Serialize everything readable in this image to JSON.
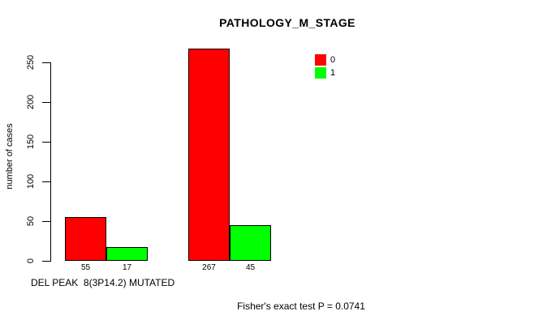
{
  "title": "PATHOLOGY_M_STAGE",
  "axes": {
    "ylabel": "number of cases",
    "xlabel": "DEL PEAK  8(3P14.2) MUTATED"
  },
  "footer": "Fisher's exact test P = 0.0741",
  "legend": {
    "position": "top-right",
    "items": [
      {
        "label": "0",
        "color": "#FF0000"
      },
      {
        "label": "1",
        "color": "#00FF00"
      }
    ]
  },
  "colors": {
    "series_0": "#FF0000",
    "series_1": "#00FF00",
    "axis": "#000000",
    "text": "#000000",
    "background": "#FFFFFF"
  },
  "chart_data": {
    "type": "bar",
    "title": "PATHOLOGY_M_STAGE",
    "xlabel": "DEL PEAK  8(3P14.2) MUTATED",
    "ylabel": "number of cases",
    "ylim": [
      0,
      250
    ],
    "yticks": [
      0,
      50,
      100,
      150,
      200,
      250
    ],
    "grid": false,
    "legend_position": "top-right",
    "series": [
      {
        "name": "0",
        "color": "#FF0000",
        "values": [
          55,
          267
        ]
      },
      {
        "name": "1",
        "color": "#00FF00",
        "values": [
          17,
          45
        ]
      }
    ],
    "bar_value_labels": [
      [
        "55",
        "17"
      ],
      [
        "267",
        "45"
      ]
    ],
    "annotation": "Fisher's exact test P = 0.0741"
  }
}
